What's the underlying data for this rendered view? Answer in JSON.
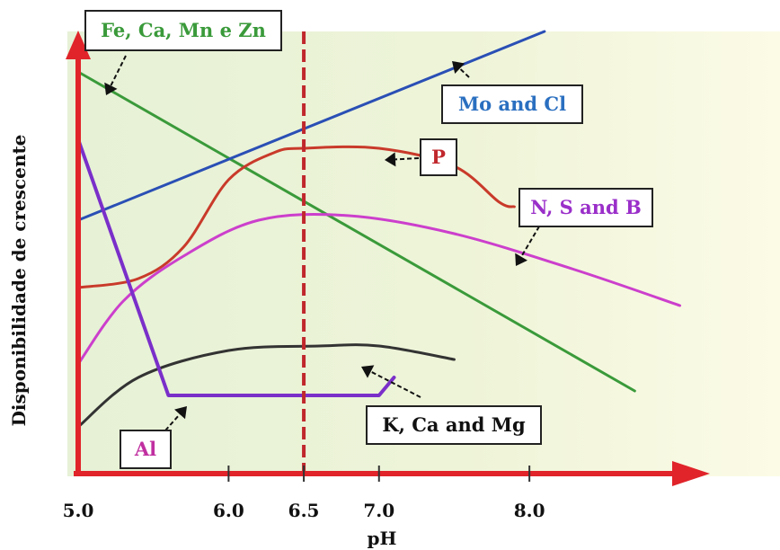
{
  "chart_data": {
    "type": "line",
    "xlabel": "pH",
    "ylabel": "Disponibilidade de crescente",
    "x_ticks": [
      "5.0",
      "6.0",
      "6.5",
      "7.0",
      "8.0"
    ],
    "xlim": [
      5.0,
      9.2
    ],
    "ylim": [
      0,
      100
    ],
    "reference_line": {
      "x": 6.5,
      "color": "#c0282d"
    },
    "series": [
      {
        "name": "Fe, Ca, Mn e Zn",
        "color": "#3a9a3a",
        "x": [
          5.0,
          8.7
        ],
        "y": [
          89,
          18
        ]
      },
      {
        "name": "Mo and Cl",
        "color": "#2a4fb5",
        "x": [
          5.0,
          8.1
        ],
        "y": [
          56,
          98
        ]
      },
      {
        "name": "P",
        "color": "#c93a2a",
        "x": [
          5.0,
          5.4,
          5.7,
          6.0,
          6.3,
          6.5,
          7.0,
          7.5,
          7.8,
          7.9
        ],
        "y": [
          41,
          43,
          50,
          65,
          71,
          72,
          72,
          68,
          60,
          59
        ]
      },
      {
        "name": "N, S and B",
        "color": "#cc3fcc",
        "x": [
          5.0,
          5.3,
          5.7,
          6.2,
          6.8,
          7.5,
          8.3,
          9.0
        ],
        "y": [
          24,
          38,
          48,
          56,
          57,
          53,
          45,
          37
        ]
      },
      {
        "name": "K, Ca and Mg",
        "color": "#333333",
        "x": [
          5.0,
          5.4,
          6.0,
          6.6,
          7.0,
          7.5
        ],
        "y": [
          10,
          21,
          27,
          28,
          28,
          25
        ]
      },
      {
        "name": "Al",
        "color": "#7a2fc9",
        "x": [
          5.0,
          5.6,
          7.0,
          7.1
        ],
        "y": [
          74,
          17,
          17,
          21
        ]
      }
    ],
    "annotations": [
      {
        "text": "Fe, Ca, Mn e Zn",
        "series": 0,
        "color": "#3a9a3a"
      },
      {
        "text": "Mo and Cl",
        "series": 1,
        "color": "#2a6fc0"
      },
      {
        "text": "P",
        "series": 2,
        "color": "#c0282d"
      },
      {
        "text": "N, S and B",
        "series": 3,
        "color": "#9a2fc9"
      },
      {
        "text": "K, Ca and Mg",
        "series": 4,
        "color": "#111111"
      },
      {
        "text": "Al",
        "series": 5,
        "color": "#c02fa0"
      }
    ]
  }
}
